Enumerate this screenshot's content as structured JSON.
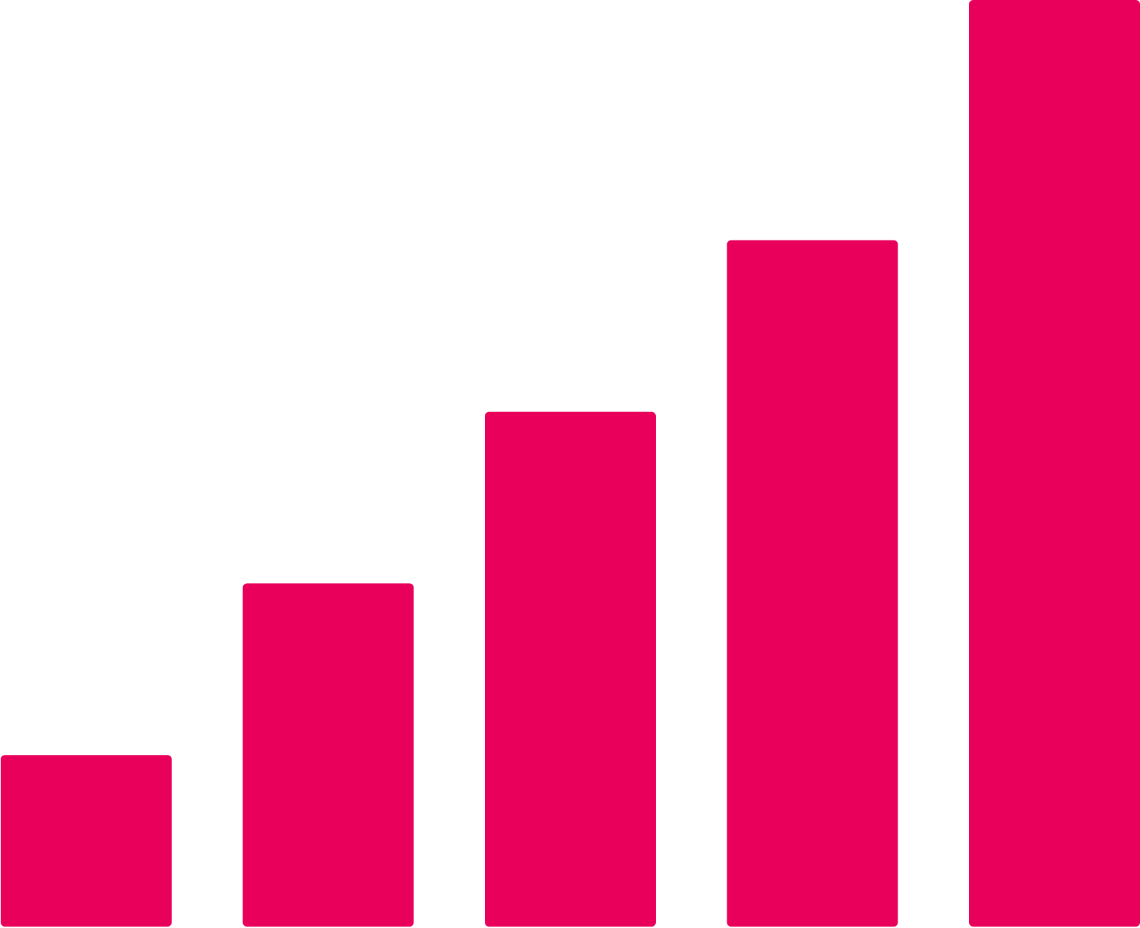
{
  "chart_data": {
    "type": "bar",
    "categories": [
      "",
      "",
      "",
      "",
      ""
    ],
    "values": [
      1,
      2,
      3,
      4,
      5.4
    ],
    "ylim": [
      0,
      5.4
    ],
    "grid": false,
    "bar_color": "#E8005A"
  },
  "colors": {
    "background": "#FFFFFF",
    "bar": "#E8005A"
  }
}
